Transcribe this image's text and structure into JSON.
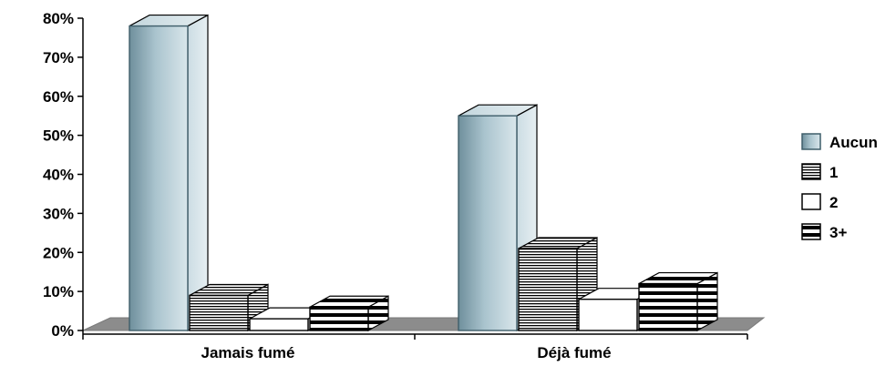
{
  "chart_data": {
    "type": "bar",
    "categories": [
      "Jamais fumé",
      "Déjà fumé"
    ],
    "series": [
      {
        "name": "Aucun",
        "values": [
          78,
          55
        ],
        "fill": "#a9c3cd",
        "pattern": "gradient"
      },
      {
        "name": "1",
        "values": [
          9,
          21
        ],
        "fill": "#ffffff",
        "pattern": "thin-horizontal-lines"
      },
      {
        "name": "2",
        "values": [
          3,
          8
        ],
        "fill": "#ffffff",
        "pattern": "solid-white"
      },
      {
        "name": "3+",
        "values": [
          6,
          12
        ],
        "fill": "#ffffff",
        "pattern": "thick-horizontal-lines"
      }
    ],
    "ylim": [
      0,
      80
    ],
    "yticks": [
      "0%",
      "10%",
      "20%",
      "30%",
      "40%",
      "50%",
      "60%",
      "70%",
      "80%"
    ],
    "y_format": "percent",
    "legend_position": "right",
    "style": "3d-clustered-column",
    "floor_color": "#8c8c8c",
    "title": "",
    "xlabel": "",
    "ylabel": ""
  }
}
